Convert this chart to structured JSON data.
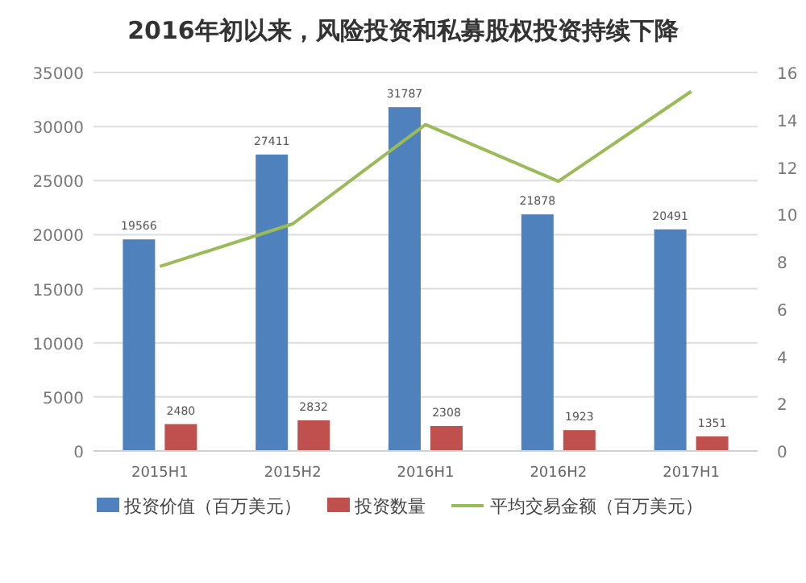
{
  "chart_data": {
    "type": "bar",
    "title": "2016年初以来，风险投资和私募股权投资持续下降",
    "categories": [
      "2015H1",
      "2015H2",
      "2016H1",
      "2016H2",
      "2017H1"
    ],
    "series": [
      {
        "name": "投资价值（百万美元）",
        "color": "#4f81bd",
        "values": [
          19566,
          27411,
          31787,
          21878,
          20491
        ],
        "value_labels": [
          "19566",
          "27411",
          "31787",
          "21878",
          "20491"
        ]
      },
      {
        "name": "投资数量",
        "color": "#c0504d",
        "values": [
          2480,
          2832,
          2308,
          1923,
          1351
        ],
        "value_labels": [
          "2480",
          "2832",
          "2308",
          "1923",
          "1351"
        ]
      },
      {
        "name": "平均交易金额（百万美元）",
        "color": "#9bbb59",
        "type": "line",
        "axis": "y2",
        "values": [
          7.8,
          9.6,
          13.8,
          11.4,
          15.2
        ]
      }
    ],
    "ylim": [
      0,
      35000
    ],
    "yticks": [
      0,
      5000,
      10000,
      15000,
      20000,
      25000,
      30000,
      35000
    ],
    "y2lim": [
      0,
      16
    ],
    "y2ticks": [
      0,
      2,
      4,
      6,
      8,
      10,
      12,
      14,
      16
    ],
    "grid": "y",
    "legend": "bottom"
  }
}
